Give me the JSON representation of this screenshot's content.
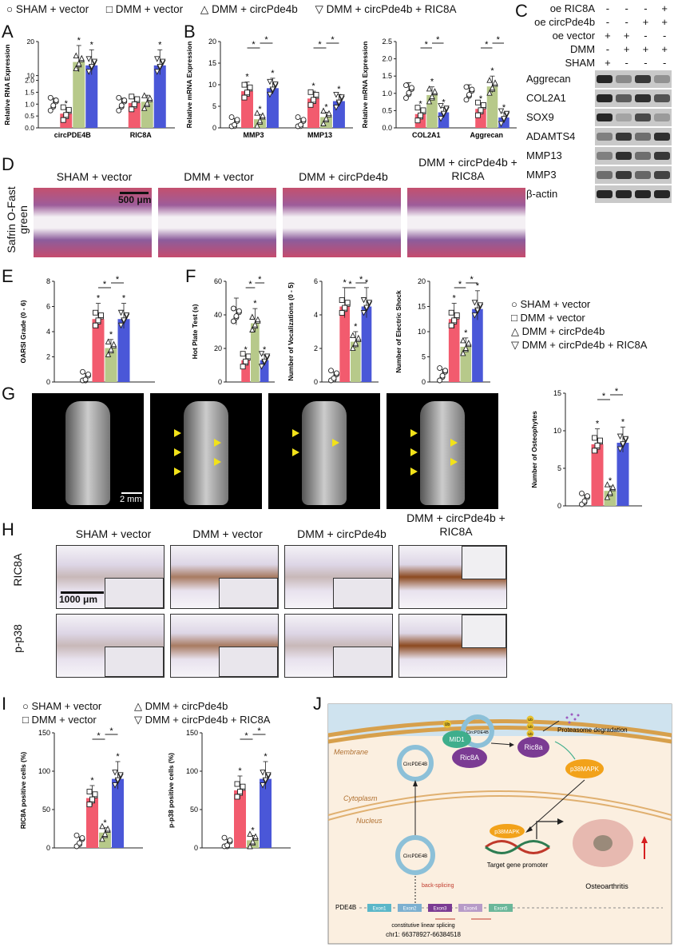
{
  "panel_letters": [
    "A",
    "B",
    "C",
    "D",
    "E",
    "F",
    "G",
    "H",
    "I",
    "J"
  ],
  "legend": {
    "items": [
      "SHAM + vector",
      "DMM + vector",
      "DMM + circPde4b",
      "DMM + circPde4b + RIC8A"
    ],
    "symbols": [
      "○",
      "□",
      "△",
      "▽"
    ]
  },
  "colors": {
    "sham": "#9b9b9b",
    "dmm": "#f25b6e",
    "circ": "#b7c98a",
    "ric8a": "#4a57d8"
  },
  "chart_data": [
    {
      "id": "A",
      "type": "bar",
      "ylabel": "Relative RNA Expression",
      "categories": [
        "circPDE4B",
        "RIC8A"
      ],
      "y_ticks": [
        "0.0",
        "0.5",
        "1.0",
        "1.5",
        "2.0",
        "10",
        "20"
      ],
      "series": [
        {
          "name": "SHAM + vector",
          "values": [
            1.0,
            1.0
          ]
        },
        {
          "name": "DMM + vector",
          "values": [
            0.6,
            1.05
          ]
        },
        {
          "name": "DMM + circPde4b",
          "values": [
            14,
            1.1
          ]
        },
        {
          "name": "DMM + circPde4b + RIC8A",
          "values": [
            13,
            13
          ]
        }
      ]
    },
    {
      "id": "B1",
      "type": "bar",
      "ylabel": "Relative mRNA Expression",
      "categories": [
        "MMP3",
        "MMP13"
      ],
      "ylim": [
        0,
        20
      ],
      "y_ticks": [
        "0",
        "5",
        "10",
        "15",
        "20"
      ],
      "series": [
        {
          "name": "SHAM + vector",
          "values": [
            1,
            1
          ]
        },
        {
          "name": "DMM + vector",
          "values": [
            8.5,
            6.8
          ]
        },
        {
          "name": "DMM + circPde4b",
          "values": [
            2,
            2.5
          ]
        },
        {
          "name": "DMM + circPde4b + RIC8A",
          "values": [
            9.2,
            6.2
          ]
        }
      ]
    },
    {
      "id": "B2",
      "type": "bar",
      "ylabel": "Relative mRNA Expression",
      "categories": [
        "COL2A1",
        "Aggrecan"
      ],
      "ylim": [
        0,
        2.5
      ],
      "y_ticks": [
        "0.0",
        "0.5",
        "1.0",
        "1.5",
        "2.0",
        "2.5"
      ],
      "series": [
        {
          "name": "SHAM + vector",
          "values": [
            1.05,
            1.0
          ]
        },
        {
          "name": "DMM + vector",
          "values": [
            0.4,
            0.55
          ]
        },
        {
          "name": "DMM + circPde4b",
          "values": [
            0.95,
            1.2
          ]
        },
        {
          "name": "DMM + circPde4b + RIC8A",
          "values": [
            0.45,
            0.3
          ]
        }
      ]
    },
    {
      "id": "E",
      "type": "bar",
      "ylabel": "OARSI Grade (0 - 6)",
      "ylim": [
        0,
        8
      ],
      "y_ticks": [
        "0",
        "2",
        "4",
        "6",
        "8"
      ],
      "series": [
        {
          "name": "SHAM + vector",
          "values": [
            0.3
          ]
        },
        {
          "name": "DMM + vector",
          "values": [
            5.0
          ]
        },
        {
          "name": "DMM + circPde4b",
          "values": [
            2.7
          ]
        },
        {
          "name": "DMM + circPde4b + RIC8A",
          "values": [
            5.0
          ]
        }
      ]
    },
    {
      "id": "F1",
      "type": "bar",
      "ylabel": "Hot Plate Test (s)",
      "ylim": [
        0,
        60
      ],
      "y_ticks": [
        "0",
        "20",
        "40",
        "60"
      ],
      "series": [
        {
          "name": "SHAM + vector",
          "values": [
            40
          ]
        },
        {
          "name": "DMM + vector",
          "values": [
            13
          ]
        },
        {
          "name": "DMM + circPde4b",
          "values": [
            35
          ]
        },
        {
          "name": "DMM + circPde4b + RIC8A",
          "values": [
            13
          ]
        }
      ]
    },
    {
      "id": "F2",
      "type": "bar",
      "ylabel": "Number of Vocalizations (0 - 5)",
      "ylim": [
        0,
        6
      ],
      "y_ticks": [
        "0",
        "2",
        "4",
        "6"
      ],
      "series": [
        {
          "name": "SHAM + vector",
          "values": [
            0.3
          ]
        },
        {
          "name": "DMM + vector",
          "values": [
            4.5
          ]
        },
        {
          "name": "DMM + circPde4b",
          "values": [
            2.4
          ]
        },
        {
          "name": "DMM + circPde4b + RIC8A",
          "values": [
            4.5
          ]
        }
      ]
    },
    {
      "id": "F3",
      "type": "bar",
      "ylabel": "Number of Electric Shock",
      "ylim": [
        0,
        20
      ],
      "y_ticks": [
        "0",
        "5",
        "10",
        "15",
        "20"
      ],
      "series": [
        {
          "name": "SHAM + vector",
          "values": [
            1.5
          ]
        },
        {
          "name": "DMM + vector",
          "values": [
            12.5
          ]
        },
        {
          "name": "DMM + circPde4b",
          "values": [
            7
          ]
        },
        {
          "name": "DMM + circPde4b + RIC8A",
          "values": [
            14.5
          ]
        }
      ]
    },
    {
      "id": "G",
      "type": "bar",
      "ylabel": "Number of Osteophytes",
      "ylim": [
        0,
        15
      ],
      "y_ticks": [
        "0",
        "5",
        "10",
        "15"
      ],
      "series": [
        {
          "name": "SHAM + vector",
          "values": [
            0.8
          ]
        },
        {
          "name": "DMM + vector",
          "values": [
            8.2
          ]
        },
        {
          "name": "DMM + circPde4b",
          "values": [
            2.0
          ]
        },
        {
          "name": "DMM + circPde4b + RIC8A",
          "values": [
            8.4
          ]
        }
      ]
    },
    {
      "id": "I1",
      "type": "bar",
      "ylabel": "RIC8A positive cells (%)",
      "ylim": [
        0,
        150
      ],
      "y_ticks": [
        "0",
        "50",
        "100",
        "150"
      ],
      "series": [
        {
          "name": "SHAM + vector",
          "values": [
            8
          ]
        },
        {
          "name": "DMM + vector",
          "values": [
            65
          ]
        },
        {
          "name": "DMM + circPde4b",
          "values": [
            20
          ]
        },
        {
          "name": "DMM + circPde4b + RIC8A",
          "values": [
            90
          ]
        }
      ]
    },
    {
      "id": "I2",
      "type": "bar",
      "ylabel": "p-p38 positive cells (%)",
      "ylim": [
        0,
        150
      ],
      "y_ticks": [
        "0",
        "50",
        "100",
        "150"
      ],
      "series": [
        {
          "name": "SHAM + vector",
          "values": [
            5
          ]
        },
        {
          "name": "DMM + vector",
          "values": [
            75
          ]
        },
        {
          "name": "DMM + circPde4b",
          "values": [
            10
          ]
        },
        {
          "name": "DMM + circPde4b + RIC8A",
          "values": [
            90
          ]
        }
      ]
    }
  ],
  "western": {
    "header_rows": [
      {
        "label": "oe RIC8A",
        "marks": [
          "-",
          "-",
          "-",
          "+"
        ]
      },
      {
        "label": "oe circPde4b",
        "marks": [
          "-",
          "-",
          "+",
          "+"
        ]
      },
      {
        "label": "oe vector",
        "marks": [
          "+",
          "+",
          "-",
          "-"
        ]
      },
      {
        "label": "DMM",
        "marks": [
          "-",
          "+",
          "+",
          "+"
        ]
      },
      {
        "label": "SHAM",
        "marks": [
          "+",
          "-",
          "-",
          "-"
        ]
      }
    ],
    "proteins": [
      "Aggrecan",
      "COL2A1",
      "SOX9",
      "ADAMTS4",
      "MMP13",
      "MMP3",
      "β-actin"
    ]
  },
  "histology": {
    "groups": [
      "SHAM + vector",
      "DMM + vector",
      "DMM + circPde4b",
      "DMM + circPde4b + RIC8A"
    ],
    "d_side": "Safrin O-Fast green",
    "d_scale": "500 μm",
    "g_scale": "2 mm",
    "h_rows": [
      "RIC8A",
      "p-p38"
    ],
    "h_scale": "1000 μm"
  },
  "schematic": {
    "membrane": "Membrane",
    "cytoplasm": "Cytoplasm",
    "nucleus": "Nucleus",
    "circ": "CircPDE4B",
    "mid1": "MID1",
    "ric8a": "Ric8A",
    "ric8": "Ric8a",
    "ub": "Ub",
    "proteasome": "Proteasome degradation",
    "p38": "p38MAPK",
    "promoter": "Target gene promoter",
    "oa": "Osteoarthritis",
    "back": "back-splicing",
    "gene": "PDE4B",
    "exons": [
      "Exon1",
      "Exon2",
      "Exon3",
      "Exon4",
      "Exon5"
    ],
    "linear": "constitutive linear splicing",
    "chr": "chr1: 66378927-66384518"
  }
}
